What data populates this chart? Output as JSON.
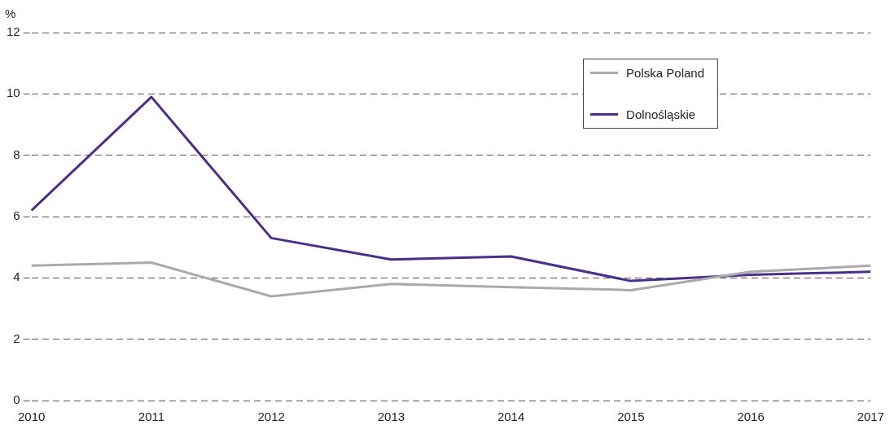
{
  "chart_data": {
    "type": "line",
    "ylabel": "%",
    "categories": [
      "2010",
      "2011",
      "2012",
      "2013",
      "2014",
      "2015",
      "2016",
      "2017"
    ],
    "series": [
      {
        "name": "Polska Poland",
        "color": "#aaaaaa",
        "values": [
          4.4,
          4.5,
          3.4,
          3.8,
          3.7,
          3.6,
          4.2,
          4.4
        ]
      },
      {
        "name": "Dolnośląskie",
        "color": "#4b2e8c",
        "values": [
          6.2,
          9.9,
          5.3,
          4.6,
          4.7,
          3.9,
          4.1,
          4.2
        ]
      }
    ],
    "ylim": [
      0,
      12
    ],
    "yticks": [
      0,
      2,
      4,
      6,
      8,
      10,
      12
    ],
    "grid": "y",
    "legend": "top right",
    "marker": "none",
    "line_style": "solid"
  }
}
